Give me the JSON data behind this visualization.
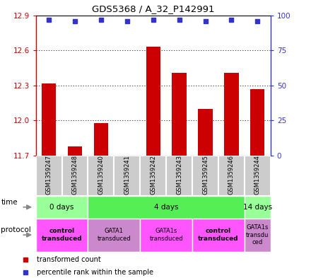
{
  "title": "GDS5368 / A_32_P142991",
  "samples": [
    "GSM1359247",
    "GSM1359248",
    "GSM1359240",
    "GSM1359241",
    "GSM1359242",
    "GSM1359243",
    "GSM1359245",
    "GSM1359246",
    "GSM1359244"
  ],
  "bar_values": [
    12.32,
    11.78,
    11.98,
    11.7,
    12.63,
    12.41,
    12.1,
    12.41,
    12.27
  ],
  "percentile_values": [
    97,
    96,
    97,
    96,
    97,
    97,
    96,
    97,
    96
  ],
  "ylim": [
    11.7,
    12.9
  ],
  "ylim_right": [
    0,
    100
  ],
  "yticks_left": [
    11.7,
    12.0,
    12.3,
    12.6,
    12.9
  ],
  "yticks_right": [
    0,
    25,
    50,
    75,
    100
  ],
  "bar_color": "#cc0000",
  "percentile_color": "#3333cc",
  "grid_color": "#000000",
  "time_groups": [
    {
      "label": "0 days",
      "start": 0,
      "end": 2,
      "color": "#99ff99"
    },
    {
      "label": "4 days",
      "start": 2,
      "end": 8,
      "color": "#55ee55"
    },
    {
      "label": "14 days",
      "start": 8,
      "end": 9,
      "color": "#99ff99"
    }
  ],
  "protocol_groups": [
    {
      "label": "control\ntransduced",
      "start": 0,
      "end": 2,
      "color": "#ff55ff",
      "bold": true
    },
    {
      "label": "GATA1\ntransduced",
      "start": 2,
      "end": 4,
      "color": "#cc88cc",
      "bold": false
    },
    {
      "label": "GATA1s\ntransduced",
      "start": 4,
      "end": 6,
      "color": "#ff55ff",
      "bold": false
    },
    {
      "label": "control\ntransduced",
      "start": 6,
      "end": 8,
      "color": "#ff55ff",
      "bold": true
    },
    {
      "label": "GATA1s\ntransdu\nced",
      "start": 8,
      "end": 9,
      "color": "#cc88cc",
      "bold": false
    }
  ],
  "legend_items": [
    {
      "label": "transformed count",
      "color": "#cc0000"
    },
    {
      "label": "percentile rank within the sample",
      "color": "#3333cc"
    }
  ],
  "left_color": "#cc0000",
  "right_color": "#3333cc",
  "sample_bg": "#cccccc",
  "sample_border": "#ffffff",
  "bg_color": "#ffffff"
}
